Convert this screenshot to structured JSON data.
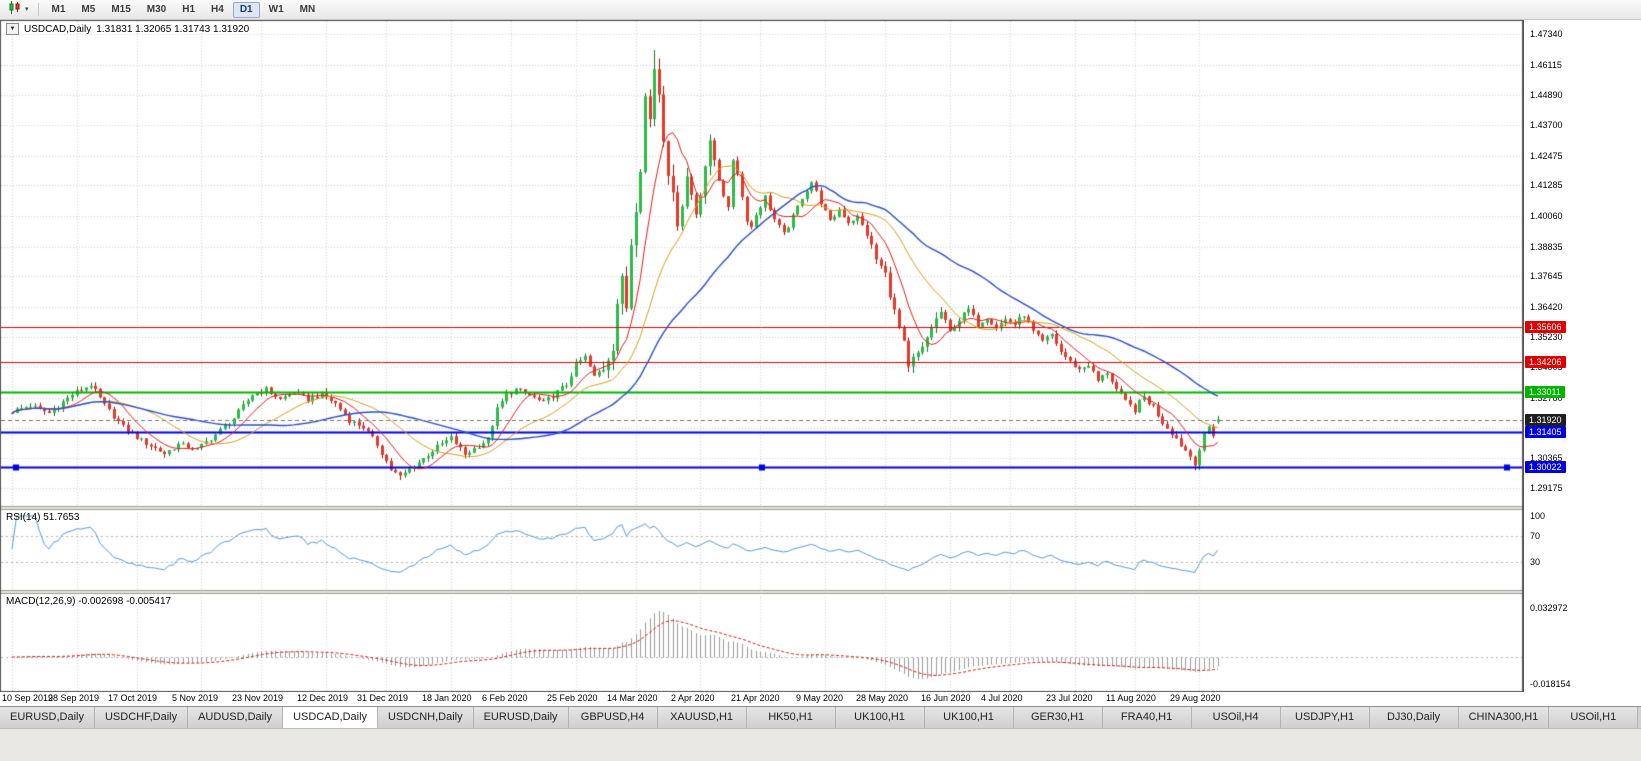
{
  "toolbar": {
    "timeframes": [
      "M1",
      "M5",
      "M15",
      "M30",
      "H1",
      "H4",
      "D1",
      "W1",
      "MN"
    ],
    "active_timeframe": "D1"
  },
  "icons": {
    "one_click_trading": "▼",
    "timeframe_toolbar_caret": "▾"
  },
  "chart": {
    "title": "USDCAD,Daily",
    "ohlc_text": "1.31831 1.32065 1.31743 1.31920",
    "open": "1.31831",
    "high": "1.32065",
    "low": "1.31743",
    "close": "1.31920"
  },
  "price_axis": {
    "ticks": [
      "1.47340",
      "1.46115",
      "1.44890",
      "1.43700",
      "1.42475",
      "1.41285",
      "1.40060",
      "1.38835",
      "1.37645",
      "1.36420",
      "1.35230",
      "1.34005",
      "1.32780",
      "1.31590",
      "1.30365",
      "1.29175"
    ]
  },
  "current_price": {
    "label": "1.31920",
    "value": 1.3192,
    "tag_color": "#1f1f1f"
  },
  "rsi": {
    "label": "RSI(14) 51.7653",
    "period": 14,
    "value": "51.7653",
    "color": "#5a9bd4",
    "levels": [
      70,
      30
    ],
    "scale": [
      "100",
      "70",
      "30"
    ]
  },
  "macd": {
    "label": "MACD(12,26,9) -0.002698 -0.005417",
    "params": "12,26,9",
    "values": [
      "-0.002698",
      "-0.005417"
    ],
    "scale_max": "0.032972",
    "scale_min": "-0.018154",
    "hist_color": "#9a9a9a",
    "signal_color": "#cc2222"
  },
  "time_axis": {
    "labels": [
      "10 Sep 2019",
      "28 Sep 2019",
      "17 Oct 2019",
      "5 Nov 2019",
      "23 Nov 2019",
      "12 Dec 2019",
      "31 Dec 2019",
      "18 Jan 2020",
      "6 Feb 2020",
      "25 Feb 2020",
      "14 Mar 2020",
      "2 Apr 2020",
      "21 Apr 2020",
      "9 May 2020",
      "28 May 2020",
      "16 Jun 2020",
      "4 Jul 2020",
      "23 Jul 2020",
      "11 Aug 2020",
      "29 Aug 2020"
    ]
  },
  "tabs": {
    "labels": [
      "EURUSD,Daily",
      "USDCHF,Daily",
      "AUDUSD,Daily",
      "USDCAD,Daily",
      "USDCNH,Daily",
      "EURUSD,Daily",
      "GBPUSD,H4",
      "XAUUSD,H1",
      "HK50,H1",
      "UK100,H1",
      "UK100,H1",
      "GER30,H1",
      "FRA40,H1",
      "USOil,H4",
      "USDJPY,H1",
      "DJ30,Daily",
      "CHINA300,H1",
      "USOil,H1"
    ],
    "active_index": 3
  },
  "chart_data": {
    "type": "candlestick",
    "symbol": "USDCAD",
    "timeframe": "Daily",
    "num_candles": 262,
    "volatility": 0.0026,
    "vol_zones": [
      {
        "from": 128,
        "to": 152,
        "mult": 3.0
      },
      {
        "from": 186,
        "to": 201,
        "mult": 1.7
      },
      {
        "from": 243,
        "to": 258,
        "mult": 1.3
      }
    ],
    "y_axis": {
      "max_price": 1.479,
      "min_price": 1.2846
    },
    "tick_candle_indices": [
      0,
      14,
      27,
      41,
      54,
      68,
      81,
      95,
      108,
      122,
      135,
      149,
      162,
      176,
      189,
      203,
      216,
      230,
      243,
      257
    ],
    "close_path": [
      [
        0,
        1.3225
      ],
      [
        4,
        1.3248
      ],
      [
        8,
        1.3218
      ],
      [
        13,
        1.3292
      ],
      [
        17,
        1.3332
      ],
      [
        20,
        1.3248
      ],
      [
        24,
        1.3162
      ],
      [
        28,
        1.3108
      ],
      [
        33,
        1.3056
      ],
      [
        36,
        1.3092
      ],
      [
        40,
        1.3072
      ],
      [
        44,
        1.3132
      ],
      [
        48,
        1.3198
      ],
      [
        52,
        1.3292
      ],
      [
        55,
        1.3312
      ],
      [
        58,
        1.3272
      ],
      [
        61,
        1.3302
      ],
      [
        64,
        1.3272
      ],
      [
        67,
        1.3292
      ],
      [
        70,
        1.3256
      ],
      [
        73,
        1.3188
      ],
      [
        76,
        1.3162
      ],
      [
        79,
        1.3092
      ],
      [
        82,
        1.2992
      ],
      [
        84,
        1.2962
      ],
      [
        86,
        1.2992
      ],
      [
        89,
        1.3036
      ],
      [
        92,
        1.3082
      ],
      [
        95,
        1.3118
      ],
      [
        98,
        1.3052
      ],
      [
        101,
        1.3088
      ],
      [
        103,
        1.3112
      ],
      [
        105,
        1.3232
      ],
      [
        107,
        1.3292
      ],
      [
        109,
        1.3312
      ],
      [
        112,
        1.3288
      ],
      [
        115,
        1.3258
      ],
      [
        118,
        1.3302
      ],
      [
        120,
        1.3332
      ],
      [
        122,
        1.3412
      ],
      [
        124,
        1.3442
      ],
      [
        126,
        1.3362
      ],
      [
        128,
        1.3402
      ],
      [
        130,
        1.3492
      ],
      [
        131,
        1.3662
      ],
      [
        132,
        1.3742
      ],
      [
        133,
        1.3642
      ],
      [
        134,
        1.3902
      ],
      [
        135,
        1.4052
      ],
      [
        136,
        1.4212
      ],
      [
        137,
        1.4482
      ],
      [
        138,
        1.4392
      ],
      [
        139,
        1.4602
      ],
      [
        140,
        1.4502
      ],
      [
        141,
        1.4332
      ],
      [
        142,
        1.4192
      ],
      [
        143,
        1.4072
      ],
      [
        144,
        1.3992
      ],
      [
        145,
        1.4062
      ],
      [
        146,
        1.4162
      ],
      [
        147,
        1.4092
      ],
      [
        148,
        1.4022
      ],
      [
        149,
        1.4112
      ],
      [
        150,
        1.4212
      ],
      [
        151,
        1.4282
      ],
      [
        152,
        1.4232
      ],
      [
        153,
        1.4152
      ],
      [
        154,
        1.4092
      ],
      [
        155,
        1.4032
      ],
      [
        156,
        1.4232
      ],
      [
        157,
        1.4182
      ],
      [
        158,
        1.4082
      ],
      [
        159,
        1.3992
      ],
      [
        160,
        1.3962
      ],
      [
        161,
        1.4012
      ],
      [
        163,
        1.4082
      ],
      [
        165,
        1.3992
      ],
      [
        167,
        1.3932
      ],
      [
        169,
        1.4002
      ],
      [
        171,
        1.4082
      ],
      [
        173,
        1.4142
      ],
      [
        175,
        1.4062
      ],
      [
        177,
        1.3982
      ],
      [
        179,
        1.4032
      ],
      [
        181,
        1.3982
      ],
      [
        183,
        1.4002
      ],
      [
        185,
        1.3932
      ],
      [
        187,
        1.3832
      ],
      [
        189,
        1.3772
      ],
      [
        191,
        1.3622
      ],
      [
        193,
        1.3492
      ],
      [
        194,
        1.3392
      ],
      [
        195,
        1.3432
      ],
      [
        197,
        1.3472
      ],
      [
        199,
        1.3562
      ],
      [
        201,
        1.3622
      ],
      [
        203,
        1.3542
      ],
      [
        205,
        1.3592
      ],
      [
        207,
        1.3632
      ],
      [
        209,
        1.3572
      ],
      [
        211,
        1.3602
      ],
      [
        213,
        1.3562
      ],
      [
        215,
        1.3592
      ],
      [
        217,
        1.3572
      ],
      [
        219,
        1.3612
      ],
      [
        221,
        1.3542
      ],
      [
        223,
        1.3502
      ],
      [
        225,
        1.3532
      ],
      [
        227,
        1.3462
      ],
      [
        229,
        1.3422
      ],
      [
        231,
        1.3392
      ],
      [
        233,
        1.3412
      ],
      [
        235,
        1.3346
      ],
      [
        237,
        1.3382
      ],
      [
        239,
        1.3312
      ],
      [
        241,
        1.3262
      ],
      [
        243,
        1.3232
      ],
      [
        245,
        1.3282
      ],
      [
        247,
        1.3242
      ],
      [
        249,
        1.3182
      ],
      [
        251,
        1.3142
      ],
      [
        253,
        1.3092
      ],
      [
        255,
        1.3046
      ],
      [
        256,
        1.3022
      ],
      [
        257,
        1.3072
      ],
      [
        258,
        1.3122
      ],
      [
        259,
        1.3162
      ],
      [
        260,
        1.3132
      ],
      [
        261,
        1.3192
      ]
    ],
    "last_candle": {
      "o": 1.31831,
      "h": 1.32065,
      "l": 1.31743,
      "c": 1.3192
    },
    "forced_extremes": [
      {
        "idx": 139,
        "high": 1.467
      },
      {
        "idx": 84,
        "low": 1.295
      },
      {
        "idx": 256,
        "low": 1.2994
      }
    ],
    "moving_averages": [
      {
        "period": 8,
        "color": "#e02020",
        "width": 1
      },
      {
        "period": 20,
        "color": "#d8a01d",
        "width": 1
      },
      {
        "period": 40,
        "color": "#2d4fc4",
        "width": 1.4
      }
    ],
    "levels": [
      {
        "value": 1.35606,
        "label": "1.35606",
        "color": "#e00000",
        "width": 1,
        "name": "resistance-line-1"
      },
      {
        "value": 1.34206,
        "label": "1.34206",
        "color": "#e00000",
        "width": 1,
        "name": "resistance-line-2"
      },
      {
        "value": 1.33011,
        "label": "1.33011",
        "color": "#00b400",
        "width": 2,
        "name": "pivot-line"
      },
      {
        "value": 1.31405,
        "label": "1.31405",
        "color": "#0000e0",
        "width": 2,
        "name": "support-line-1"
      },
      {
        "value": 1.30022,
        "label": "1.30022",
        "color": "#0000e0",
        "width": 2,
        "handles": true,
        "name": "support-line-2"
      }
    ],
    "colors": {
      "up": "#2eb94a",
      "up_border": "#157a2a",
      "down": "#e03a2c",
      "down_border": "#8f1d12",
      "grid": "#d4d4d4",
      "frame": "#555555",
      "background": "#ffffff"
    }
  }
}
